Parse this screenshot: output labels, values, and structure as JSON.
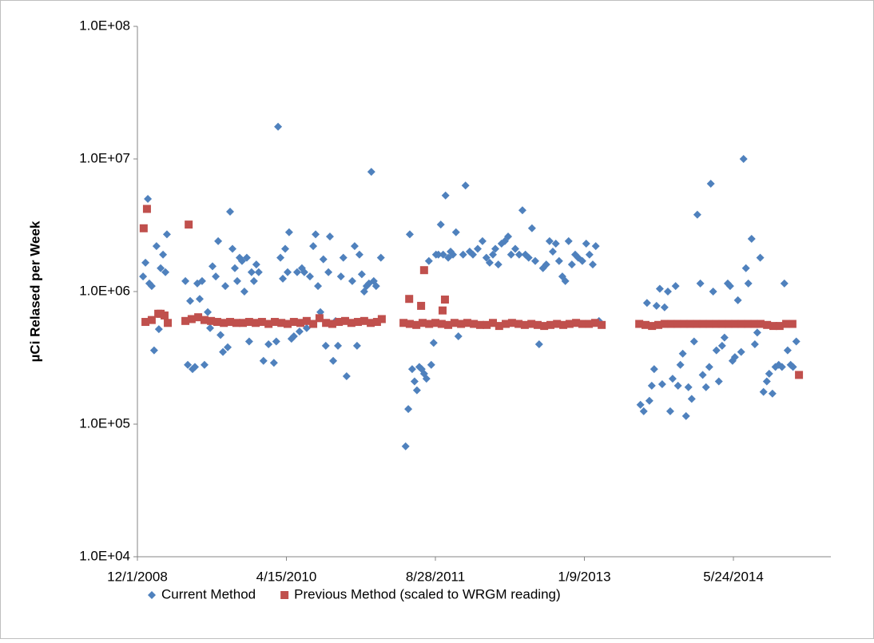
{
  "chart_data": {
    "type": "scatter",
    "ylabel": "µCi Relased per Week",
    "log_y": true,
    "legend": "bottom",
    "xlim": [
      39783,
      42110
    ],
    "xticks": [
      {
        "value": 39783,
        "label": "12/1/2008"
      },
      {
        "value": 40283,
        "label": "4/15/2010"
      },
      {
        "value": 40783,
        "label": "8/28/2011"
      },
      {
        "value": 41283,
        "label": "1/9/2013"
      },
      {
        "value": 41783,
        "label": "5/24/2014"
      }
    ],
    "ylim": [
      10000,
      100000000
    ],
    "yticks": [
      {
        "value": 10000,
        "label": "1.0E+04"
      },
      {
        "value": 100000,
        "label": "1.0E+05"
      },
      {
        "value": 1000000,
        "label": "1.0E+06"
      },
      {
        "value": 10000000,
        "label": "1.0E+07"
      },
      {
        "value": 100000000,
        "label": "1.0E+08"
      }
    ],
    "series": [
      {
        "name": "Current Method",
        "color": "#4f81bd",
        "marker": "diamond",
        "x": [
          39802,
          39810,
          39818,
          39823,
          39831,
          39839,
          39847,
          39855,
          39861,
          39869,
          39877,
          39882,
          39944,
          39952,
          39960,
          39968,
          39976,
          39984,
          39992,
          40000,
          40008,
          40019,
          40027,
          40035,
          40046,
          40054,
          40062,
          40070,
          40078,
          40086,
          40094,
          40102,
          40110,
          40118,
          40126,
          40134,
          40142,
          40150,
          40158,
          40166,
          40174,
          40182,
          40190,
          40206,
          40223,
          40241,
          40249,
          40255,
          40263,
          40271,
          40279,
          40287,
          40292,
          40300,
          40308,
          40319,
          40327,
          40335,
          40343,
          40351,
          40362,
          40373,
          40381,
          40389,
          40397,
          40407,
          40415,
          40424,
          40429,
          40440,
          40448,
          40456,
          40466,
          40474,
          40485,
          40504,
          40512,
          40520,
          40528,
          40536,
          40544,
          40552,
          40560,
          40568,
          40576,
          40584,
          40600,
          40683,
          40692,
          40697,
          40705,
          40713,
          40721,
          40729,
          40737,
          40745,
          40753,
          40761,
          40769,
          40777,
          40785,
          40793,
          40801,
          40809,
          40817,
          40826,
          40834,
          40842,
          40852,
          40860,
          40876,
          40884,
          40898,
          40909,
          40925,
          40941,
          40954,
          40965,
          40976,
          40984,
          40994,
          41005,
          41016,
          41027,
          41037,
          41051,
          41064,
          41075,
          41085,
          41096,
          41107,
          41118,
          41131,
          41144,
          41155,
          41166,
          41177,
          41187,
          41198,
          41209,
          41219,
          41230,
          41241,
          41252,
          41262,
          41276,
          41289,
          41300,
          41311,
          41321,
          41332,
          41471,
          41482,
          41493,
          41501,
          41509,
          41517,
          41525,
          41536,
          41544,
          41552,
          41563,
          41571,
          41579,
          41589,
          41597,
          41605,
          41613,
          41624,
          41632,
          41643,
          41651,
          41662,
          41672,
          41680,
          41691,
          41702,
          41707,
          41715,
          41726,
          41734,
          41745,
          41753,
          41764,
          41772,
          41780,
          41788,
          41798,
          41809,
          41817,
          41825,
          41833,
          41844,
          41855,
          41863,
          41873,
          41884,
          41895,
          41903,
          41914,
          41924,
          41935,
          41946,
          41954,
          41965,
          41975,
          41983,
          41994
        ],
        "values": [
          1300000,
          1650000,
          5000000,
          1150000,
          1100000,
          360000,
          2200000,
          520000,
          1500000,
          1900000,
          1400000,
          2700000,
          1200000,
          280000,
          850000,
          260000,
          270000,
          1150000,
          880000,
          1200000,
          280000,
          700000,
          530000,
          1550000,
          1300000,
          2400000,
          470000,
          350000,
          1100000,
          380000,
          4000000,
          2100000,
          1500000,
          1200000,
          1800000,
          1700000,
          1000000,
          1800000,
          420000,
          1400000,
          1200000,
          1600000,
          1400000,
          300000,
          400000,
          290000,
          420000,
          17500000,
          1800000,
          1250000,
          2100000,
          1400000,
          2800000,
          440000,
          460000,
          1400000,
          500000,
          1500000,
          1400000,
          530000,
          1300000,
          2200000,
          2700000,
          1100000,
          700000,
          1750000,
          390000,
          1400000,
          2600000,
          300000,
          600000,
          390000,
          1300000,
          1800000,
          230000,
          1200000,
          2200000,
          390000,
          1900000,
          1350000,
          1000000,
          1100000,
          1150000,
          8000000,
          1200000,
          1100000,
          1800000,
          68000,
          130000,
          2700000,
          260000,
          210000,
          180000,
          270000,
          260000,
          240000,
          220000,
          1700000,
          280000,
          410000,
          1900000,
          1900000,
          3200000,
          1900000,
          5300000,
          1800000,
          2000000,
          1900000,
          2800000,
          460000,
          1900000,
          6300000,
          2000000,
          1900000,
          2100000,
          2400000,
          1800000,
          1650000,
          1900000,
          2100000,
          1600000,
          2300000,
          2400000,
          2600000,
          1900000,
          2100000,
          1900000,
          4100000,
          1900000,
          1800000,
          3000000,
          1700000,
          400000,
          1500000,
          1600000,
          2400000,
          2000000,
          2300000,
          1700000,
          1300000,
          1200000,
          2400000,
          1600000,
          1900000,
          1800000,
          1700000,
          2300000,
          1900000,
          1600000,
          2200000,
          600000,
          140000,
          125000,
          820000,
          150000,
          195000,
          260000,
          780000,
          1050000,
          200000,
          760000,
          1000000,
          125000,
          220000,
          1100000,
          195000,
          280000,
          340000,
          115000,
          190000,
          155000,
          420000,
          3800000,
          1150000,
          235000,
          190000,
          270000,
          6500000,
          1000000,
          360000,
          210000,
          390000,
          450000,
          1150000,
          1100000,
          300000,
          320000,
          860000,
          350000,
          10000000,
          1500000,
          1150000,
          2500000,
          400000,
          490000,
          1800000,
          175000,
          210000,
          240000,
          170000,
          270000,
          280000,
          270000,
          1150000,
          360000,
          280000,
          270000,
          420000
        ]
      },
      {
        "name": "Previous Method (scaled to WRGM reading)",
        "color": "#c0504d",
        "marker": "square",
        "x": [
          39810,
          39831,
          39853,
          39874,
          39885,
          39944,
          39965,
          39987,
          40008,
          40030,
          40051,
          40073,
          40094,
          40115,
          40137,
          40158,
          40180,
          40201,
          40223,
          40244,
          40266,
          40287,
          40308,
          40330,
          40351,
          40373,
          40394,
          40416,
          40437,
          40459,
          40480,
          40501,
          40523,
          40544,
          40566,
          40587,
          40603,
          40676,
          40697,
          40719,
          40740,
          40762,
          40783,
          40804,
          40826,
          40847,
          40869,
          40890,
          40912,
          40933,
          40955,
          40976,
          40997,
          41019,
          41040,
          41062,
          41083,
          41105,
          41126,
          41148,
          41169,
          41191,
          41212,
          41233,
          41255,
          41276,
          41298,
          41319,
          41341,
          41467,
          41488,
          41510,
          41531,
          41552,
          41574,
          41595,
          41617,
          41638,
          41660,
          41681,
          41703,
          41724,
          41745,
          41767,
          41788,
          41810,
          41831,
          41853,
          41874,
          41896,
          41917,
          41938,
          41960,
          41981,
          42003,
          39804,
          39815,
          39955,
          40695,
          40735,
          40745,
          40807,
          40815,
          39861
        ],
        "values": [
          590000,
          610000,
          680000,
          660000,
          580000,
          600000,
          620000,
          640000,
          610000,
          600000,
          590000,
          580000,
          590000,
          580000,
          580000,
          590000,
          580000,
          590000,
          570000,
          590000,
          580000,
          570000,
          590000,
          580000,
          600000,
          570000,
          630000,
          580000,
          570000,
          590000,
          600000,
          580000,
          590000,
          600000,
          580000,
          590000,
          620000,
          580000,
          570000,
          560000,
          580000,
          570000,
          580000,
          570000,
          560000,
          580000,
          570000,
          580000,
          570000,
          560000,
          560000,
          580000,
          550000,
          570000,
          580000,
          570000,
          560000,
          570000,
          560000,
          550000,
          560000,
          570000,
          560000,
          570000,
          580000,
          570000,
          570000,
          580000,
          560000,
          570000,
          560000,
          550000,
          560000,
          570000,
          570000,
          570000,
          570000,
          570000,
          570000,
          570000,
          570000,
          570000,
          570000,
          570000,
          570000,
          570000,
          570000,
          570000,
          570000,
          560000,
          550000,
          550000,
          570000,
          570000,
          235000,
          3000000,
          4200000,
          3200000,
          880000,
          780000,
          1450000,
          720000,
          870000,
          680000
        ]
      }
    ]
  }
}
